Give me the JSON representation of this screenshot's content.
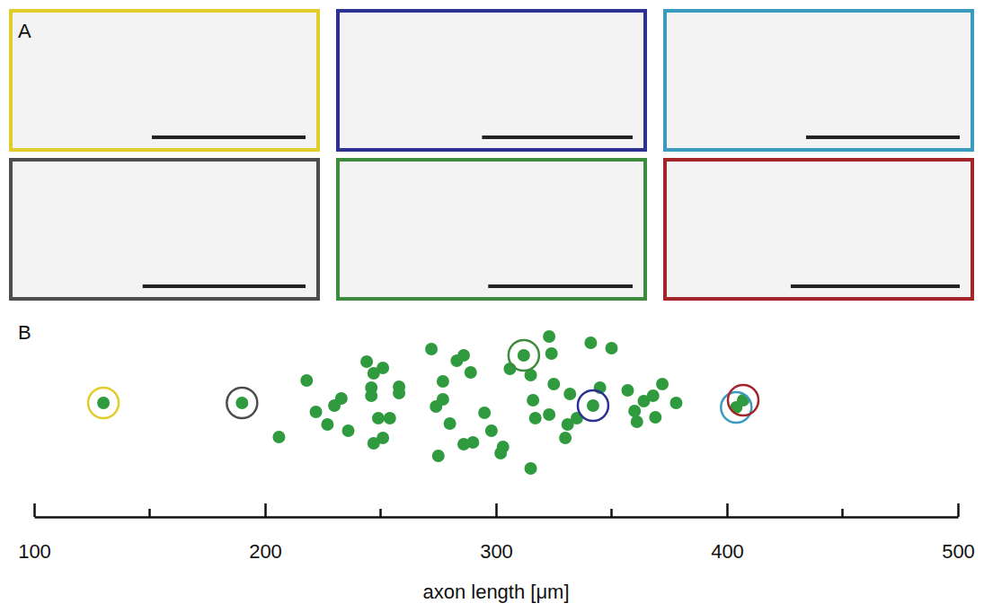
{
  "panel_a": {
    "label": "A",
    "colors": [
      "#e2cc2c",
      "#2e3192",
      "#3a9ac0",
      "#4d4d4d",
      "#3d8c3d",
      "#a3262a"
    ]
  },
  "chart_data": {
    "type": "scatter",
    "panel_label": "B",
    "x_label": "axon length [μm]",
    "color": "#2f9a3e",
    "marker": "circle",
    "tick_labels": "x",
    "xlim": [
      100,
      500
    ],
    "xticks": [
      100,
      200,
      300,
      400,
      500
    ],
    "xticks_minor": [
      150,
      250,
      350,
      450
    ],
    "ylim": [
      -1,
      1
    ],
    "x": [
      130,
      190,
      206,
      218,
      222,
      227,
      230,
      233,
      236,
      244,
      247,
      246,
      246,
      251,
      249,
      251,
      247,
      258,
      258,
      254,
      272,
      274,
      277,
      277,
      280,
      283,
      286,
      286,
      289,
      290,
      295,
      298,
      303,
      302,
      306,
      312,
      315,
      316,
      317,
      323,
      324,
      323,
      325,
      315,
      331,
      332,
      330,
      335,
      341,
      350,
      342,
      345,
      357,
      360,
      361,
      364,
      369,
      372,
      368,
      378,
      404,
      407,
      275
    ],
    "y": [
      0,
      0,
      -0.38,
      0.25,
      -0.1,
      -0.24,
      -0.03,
      0.05,
      -0.31,
      0.46,
      0.33,
      0.17,
      0.08,
      0.39,
      -0.17,
      -0.39,
      -0.45,
      0.18,
      0.11,
      -0.17,
      0.6,
      -0.04,
      0.24,
      0.04,
      -0.23,
      0.47,
      0.53,
      -0.46,
      0.34,
      -0.44,
      -0.11,
      -0.31,
      -0.49,
      -0.56,
      0.38,
      0.53,
      0.31,
      0.03,
      -0.17,
      0.74,
      0.55,
      -0.13,
      0.21,
      -0.73,
      -0.24,
      0.1,
      -0.39,
      -0.17,
      0.67,
      0.61,
      -0.03,
      0.17,
      0.14,
      -0.09,
      -0.21,
      0.02,
      -0.16,
      0.21,
      0.08,
      0,
      -0.05,
      0.03,
      -0.59
    ],
    "highlights": {
      "x": [
        130,
        190,
        312,
        342,
        404,
        407
      ],
      "y": [
        0,
        0,
        0.53,
        -0.03,
        -0.05,
        0.03
      ],
      "colors": [
        "#e2cc2c",
        "#4d4d4d",
        "#3d8c3d",
        "#2e3192",
        "#3a9ac0",
        "#a3262a"
      ]
    }
  }
}
